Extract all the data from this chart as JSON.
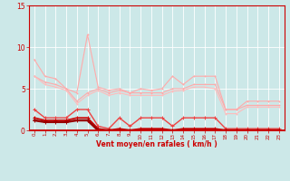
{
  "xlabel": "Vent moyen/en rafales ( km/h )",
  "background_color": "#cce8e8",
  "grid_color": "#ffffff",
  "x_values": [
    0,
    1,
    2,
    3,
    4,
    5,
    6,
    7,
    8,
    9,
    10,
    11,
    12,
    13,
    14,
    15,
    16,
    17,
    18,
    19,
    20,
    21,
    22,
    23
  ],
  "series": [
    {
      "color": "#ffaaaa",
      "linewidth": 0.8,
      "markersize": 2.0,
      "values": [
        8.5,
        6.5,
        6.2,
        5.0,
        4.5,
        11.5,
        5.2,
        4.8,
        5.0,
        4.5,
        5.0,
        4.8,
        5.0,
        6.5,
        5.5,
        6.5,
        6.5,
        6.5,
        2.5,
        2.5,
        3.5,
        3.5,
        3.5,
        3.5
      ]
    },
    {
      "color": "#ffaaaa",
      "linewidth": 0.8,
      "markersize": 2.0,
      "values": [
        6.5,
        5.8,
        5.5,
        5.0,
        3.5,
        4.5,
        5.0,
        4.5,
        4.8,
        4.5,
        4.5,
        4.5,
        4.5,
        5.0,
        5.0,
        5.5,
        5.5,
        5.5,
        2.5,
        2.5,
        3.0,
        3.0,
        3.0,
        3.0
      ]
    },
    {
      "color": "#ffbbbb",
      "linewidth": 0.8,
      "markersize": 2.0,
      "values": [
        6.5,
        5.5,
        5.2,
        4.8,
        3.2,
        4.2,
        4.8,
        4.2,
        4.5,
        4.2,
        4.2,
        4.2,
        4.2,
        4.7,
        4.8,
        5.2,
        5.2,
        5.0,
        2.0,
        2.0,
        2.8,
        2.8,
        2.8,
        2.8
      ]
    },
    {
      "color": "#ee4444",
      "linewidth": 1.0,
      "markersize": 2.5,
      "values": [
        2.5,
        1.5,
        1.5,
        1.5,
        2.5,
        2.5,
        0.5,
        0.2,
        1.5,
        0.5,
        1.5,
        1.5,
        1.5,
        0.5,
        1.5,
        1.5,
        1.5,
        1.5,
        0.2,
        0.2,
        0.2,
        0.2,
        0.2,
        0.2
      ]
    },
    {
      "color": "#cc0000",
      "linewidth": 1.2,
      "markersize": 2.5,
      "values": [
        1.5,
        1.2,
        1.2,
        1.2,
        1.5,
        1.5,
        0.2,
        0.0,
        0.2,
        0.0,
        0.2,
        0.2,
        0.2,
        0.0,
        0.2,
        0.2,
        0.2,
        0.2,
        0.0,
        0.0,
        0.0,
        0.0,
        0.0,
        0.0
      ]
    },
    {
      "color": "#990000",
      "linewidth": 1.8,
      "markersize": 2.5,
      "values": [
        1.2,
        1.0,
        1.0,
        1.0,
        1.2,
        1.2,
        0.0,
        0.0,
        0.0,
        0.0,
        0.0,
        0.0,
        0.0,
        0.0,
        0.0,
        0.0,
        0.0,
        0.0,
        0.0,
        0.0,
        0.0,
        0.0,
        0.0,
        0.0
      ]
    }
  ],
  "ylim": [
    0,
    15
  ],
  "yticks": [
    0,
    5,
    10,
    15
  ],
  "xlim": [
    -0.5,
    23.5
  ],
  "figsize": [
    3.2,
    2.0
  ],
  "dpi": 100
}
